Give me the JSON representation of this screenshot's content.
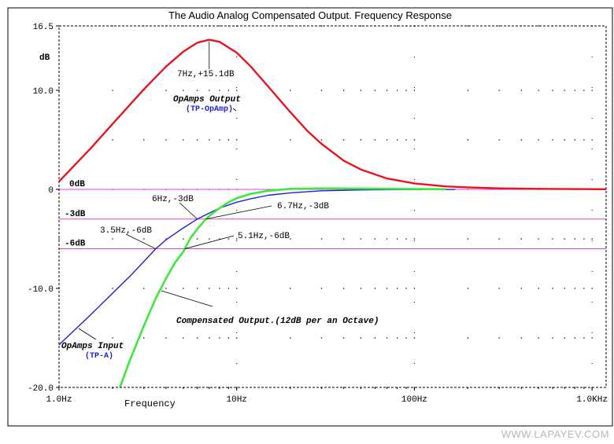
{
  "chart_data": {
    "type": "line",
    "title": "The Audio Analog Compensated Output. Frequency Response",
    "xlabel": "Frequency",
    "ylabel": "dB",
    "x_scale": "log",
    "xlim": [
      1,
      1200
    ],
    "ylim": [
      -20,
      16.5
    ],
    "x_ticks": [
      {
        "value": 1,
        "label": "1.0Hz"
      },
      {
        "value": 10,
        "label": "10Hz"
      },
      {
        "value": 100,
        "label": "100Hz"
      },
      {
        "value": 1000,
        "label": "1.0KHz"
      }
    ],
    "y_ticks": [
      {
        "value": 16.5,
        "label": "16.5"
      },
      {
        "value": 10,
        "label": "10.0"
      },
      {
        "value": 0,
        "label": "0"
      },
      {
        "value": -10,
        "label": "-10.0"
      },
      {
        "value": -20,
        "label": "-20.0"
      }
    ],
    "reference_lines": [
      {
        "y": 0,
        "label": "0dB",
        "color": "#e040e0"
      },
      {
        "y": -3,
        "label": "-3dB",
        "color": "#e040e0"
      },
      {
        "y": -6,
        "label": "-6dB",
        "color": "#e040e0"
      }
    ],
    "series": [
      {
        "name": "OpAmps Output",
        "tag": "(TP-OpAmp)",
        "color": "#e8141e",
        "x": [
          1,
          1.5,
          2,
          3,
          4,
          5,
          6,
          7,
          8,
          10,
          12,
          15,
          20,
          25,
          30,
          40,
          50,
          70,
          100,
          150,
          200,
          300,
          500,
          1000,
          1200
        ],
        "y": [
          0.8,
          4.1,
          6.6,
          10.1,
          12.4,
          13.9,
          14.8,
          15.1,
          14.9,
          13.8,
          12.4,
          10.4,
          7.8,
          5.9,
          4.6,
          2.9,
          2.0,
          1.1,
          0.6,
          0.3,
          0.2,
          0.1,
          0.05,
          0.02,
          0.01
        ]
      },
      {
        "name": "OpAmps Input",
        "tag": "(TP-A)",
        "color": "#2020d0",
        "x": [
          1,
          1.5,
          2,
          2.5,
          3,
          3.5,
          4,
          5,
          6,
          7,
          8,
          10,
          12,
          15,
          20,
          30,
          50,
          100,
          170
        ],
        "y": [
          -15.7,
          -12.7,
          -10.5,
          -8.8,
          -7.3,
          -6.0,
          -5.1,
          -3.9,
          -3.0,
          -2.4,
          -1.9,
          -1.3,
          -0.95,
          -0.6,
          -0.35,
          -0.15,
          -0.06,
          -0.02,
          -0.01
        ]
      },
      {
        "name": "Compensated Output.(12dB per an Octave)",
        "color": "#3ee83e",
        "x": [
          2.2,
          2.5,
          3,
          3.5,
          4,
          4.5,
          5,
          5.1,
          5.5,
          6,
          6.7,
          7,
          8,
          9,
          10,
          12,
          15,
          20,
          30,
          50,
          100,
          150
        ],
        "y": [
          -20.0,
          -17.3,
          -13.8,
          -11.0,
          -9.0,
          -7.4,
          -6.3,
          -6.0,
          -4.9,
          -4.0,
          -3.0,
          -2.7,
          -1.9,
          -1.3,
          -0.9,
          -0.45,
          -0.15,
          0.05,
          0.1,
          0.08,
          0.03,
          0.02
        ]
      }
    ],
    "annotations": [
      {
        "text": "7Hz,+15.1dB",
        "x": 7,
        "y": 15.1
      },
      {
        "text": "6Hz,-3dB",
        "x": 6,
        "y": -3
      },
      {
        "text": "6.7Hz,-3dB",
        "x": 6.7,
        "y": -3
      },
      {
        "text": "3.5Hz,-6dB",
        "x": 3.5,
        "y": -6
      },
      {
        "text": "5.1Hz,-6dB",
        "x": 5.1,
        "y": -6
      }
    ],
    "grid": "dotted"
  },
  "watermark": "WWW.LAPAYEV.COM"
}
